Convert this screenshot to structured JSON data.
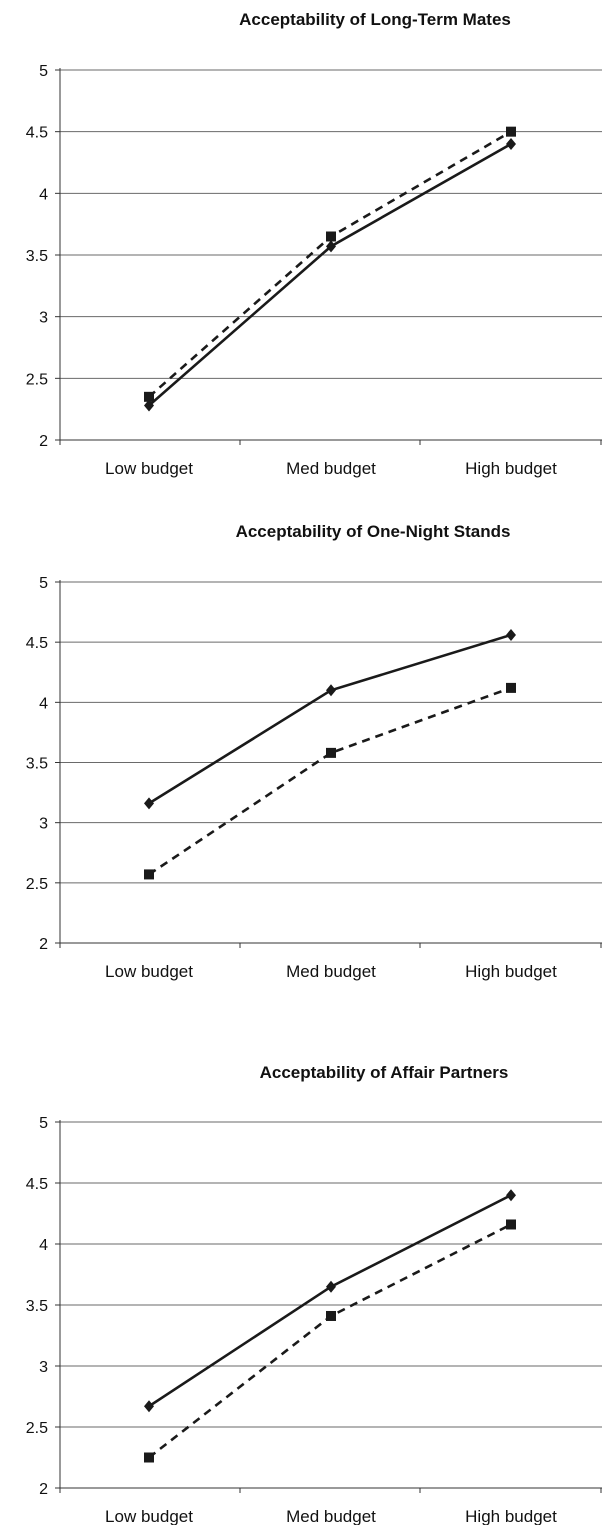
{
  "chart_data": [
    {
      "type": "line",
      "title": "Acceptability of Long-Term Mates",
      "categories": [
        "Low budget",
        "Med budget",
        "High budget"
      ],
      "ylim": [
        2,
        5
      ],
      "yticks": [
        "2",
        "2.5",
        "3",
        "3.5",
        "4",
        "4.5",
        "5"
      ],
      "grid": true,
      "series": [
        {
          "values": [
            2.28,
            3.57,
            4.4
          ],
          "line_style": "solid",
          "marker": "diamond",
          "color": "#1a1a1a"
        },
        {
          "values": [
            2.35,
            3.65,
            4.5
          ],
          "line_style": "dashed",
          "marker": "square",
          "color": "#1a1a1a"
        }
      ]
    },
    {
      "type": "line",
      "title": "Acceptability of One-Night Stands",
      "categories": [
        "Low budget",
        "Med budget",
        "High budget"
      ],
      "ylim": [
        2,
        5
      ],
      "yticks": [
        "2",
        "2.5",
        "3",
        "3.5",
        "4",
        "4.5",
        "5"
      ],
      "grid": true,
      "series": [
        {
          "values": [
            3.16,
            4.1,
            4.56
          ],
          "line_style": "solid",
          "marker": "diamond",
          "color": "#1a1a1a"
        },
        {
          "values": [
            2.57,
            3.58,
            4.12
          ],
          "line_style": "dashed",
          "marker": "square",
          "color": "#1a1a1a"
        }
      ]
    },
    {
      "type": "line",
      "title": "Acceptability of Affair Partners",
      "categories": [
        "Low budget",
        "Med budget",
        "High budget"
      ],
      "ylim": [
        2,
        5
      ],
      "yticks": [
        "2",
        "2.5",
        "3",
        "3.5",
        "4",
        "4.5",
        "5"
      ],
      "grid": true,
      "series": [
        {
          "values": [
            2.67,
            3.65,
            4.4
          ],
          "line_style": "solid",
          "marker": "diamond",
          "color": "#1a1a1a"
        },
        {
          "values": [
            2.25,
            3.41,
            4.16
          ],
          "line_style": "dashed",
          "marker": "square",
          "color": "#1a1a1a"
        }
      ]
    }
  ]
}
